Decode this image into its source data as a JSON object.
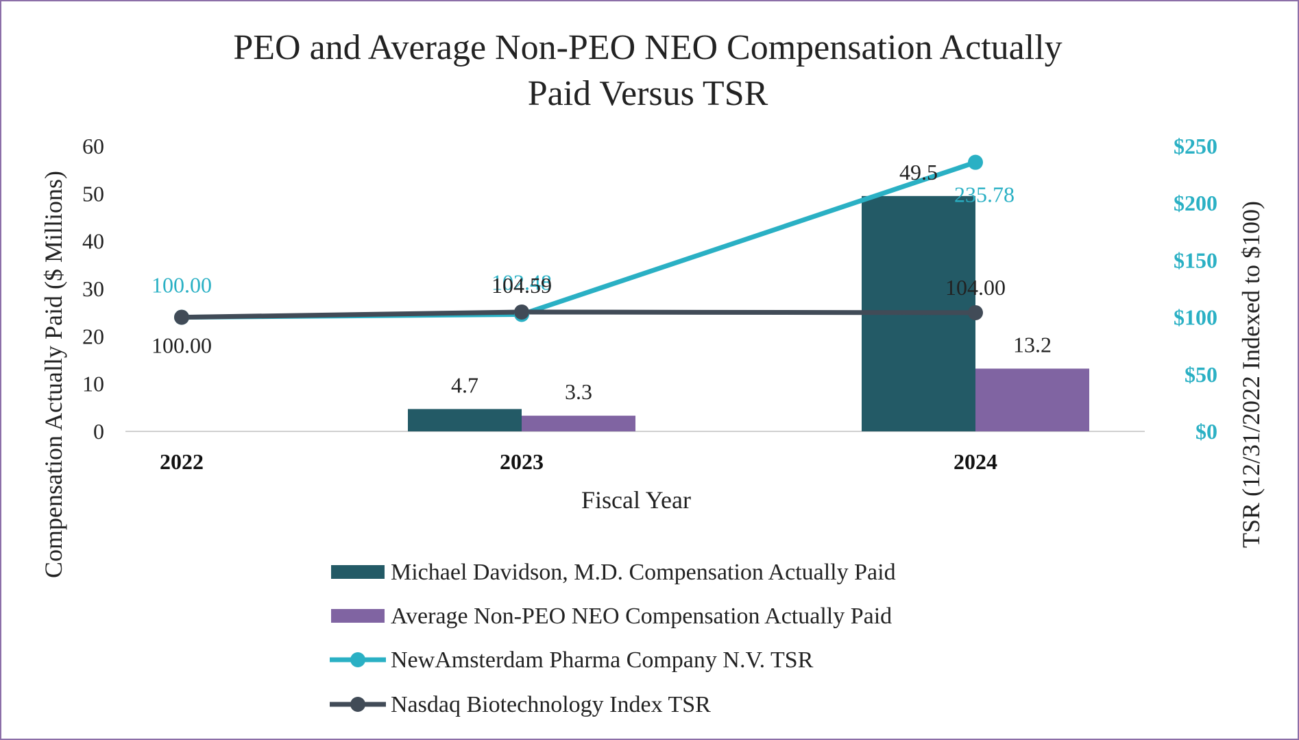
{
  "colors": {
    "peo_bar": "#235a66",
    "non_peo_bar": "#8064a2",
    "company_tsr": "#2ab0c4",
    "index_tsr": "#414b57",
    "axis_line": "#d0d0d0",
    "border": "#8c6fa8"
  },
  "chart_data": {
    "type": "bar",
    "title_lines": [
      "PEO and Average Non-PEO NEO Compensation Actually",
      "Paid Versus TSR"
    ],
    "xlabel": "Fiscal Year",
    "ylabel": "Compensation Actually Paid ($ Millions)",
    "y2label": "TSR (12/31/2022 Indexed to $100)",
    "categories": [
      "2022",
      "2023",
      "2024"
    ],
    "ylim": [
      0,
      60
    ],
    "y_ticks": [
      0,
      10,
      20,
      30,
      40,
      50,
      60
    ],
    "y_tick_labels": [
      "0",
      "10",
      "20",
      "30",
      "40",
      "50",
      "60"
    ],
    "y2lim": [
      0,
      250
    ],
    "y2_ticks": [
      0,
      50,
      100,
      150,
      200,
      250
    ],
    "y2_tick_labels": [
      "$0",
      "$50",
      "$100",
      "$150",
      "$200",
      "$250"
    ],
    "bar_series": [
      {
        "name": "Michael Davidson, M.D. Compensation Actually Paid",
        "values": [
          null,
          4.7,
          49.5
        ],
        "labels": [
          null,
          "4.7",
          "49.5"
        ]
      },
      {
        "name": "Average Non-PEO NEO Compensation Actually Paid",
        "values": [
          null,
          3.3,
          13.2
        ],
        "labels": [
          null,
          "3.3",
          "13.2"
        ]
      }
    ],
    "line_series": [
      {
        "name": "NewAmsterdam Pharma Company N.V. TSR",
        "values": [
          100.0,
          102.48,
          235.78
        ],
        "labels": [
          "100.00",
          "102.48",
          "235.78"
        ]
      },
      {
        "name": "Nasdaq Biotechnology Index TSR",
        "values": [
          100.0,
          104.59,
          104.0
        ],
        "labels": [
          "100.00",
          "104.59",
          "104.00"
        ]
      }
    ],
    "legend_position": "bottom"
  }
}
